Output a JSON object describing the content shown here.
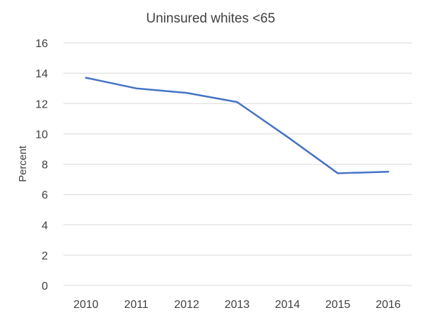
{
  "chart_data": {
    "type": "line",
    "title": "Uninsured whites <65",
    "xlabel": "",
    "ylabel": "Percent",
    "categories": [
      "2010",
      "2011",
      "2012",
      "2013",
      "2014",
      "2015",
      "2016"
    ],
    "series": [
      {
        "values": [
          13.7,
          13.0,
          12.7,
          12.1,
          9.8,
          7.4,
          7.5
        ],
        "color": "#4472c4"
      }
    ],
    "ylim": [
      0,
      16
    ],
    "y_ticks": [
      0,
      2,
      4,
      6,
      8,
      10,
      12,
      14,
      16
    ],
    "grid": true,
    "legend": "none"
  }
}
